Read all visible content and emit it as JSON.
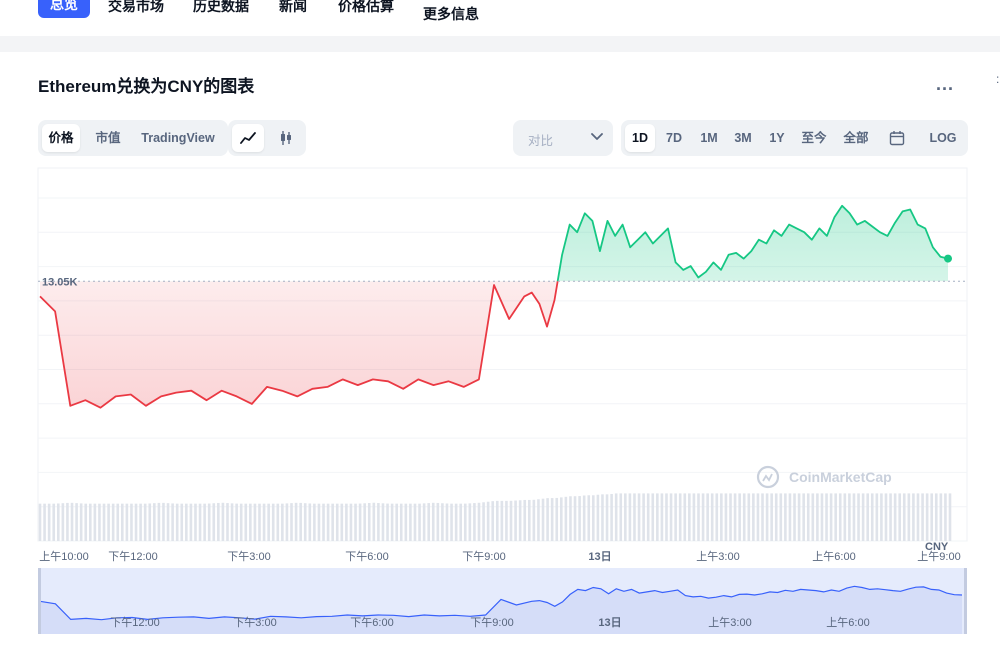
{
  "nav": {
    "active": "总览",
    "items": [
      "交易市场",
      "历史数据",
      "新闻",
      "价格估算",
      "更多信息"
    ]
  },
  "title": "Ethereum兑换为CNY的图表",
  "more_label": "...",
  "view_tabs": [
    "价格",
    "市值",
    "TradingView"
  ],
  "view_selected": "价格",
  "chart_types": [
    "line-chart-icon",
    "candlestick-icon"
  ],
  "compare": {
    "placeholder": "对比"
  },
  "ranges": [
    "1D",
    "7D",
    "1M",
    "3M",
    "1Y",
    "至今",
    "全部"
  ],
  "range_selected": "1D",
  "log_label": "LOG",
  "colors": {
    "up": "#16c784",
    "down": "#ea3943",
    "accent": "#3861fb",
    "baseline": "#a6b0c3"
  },
  "chart_data": {
    "type": "line",
    "title": "",
    "baseline_label": "13.05K",
    "baseline_value": 13050,
    "currency_label": "CNY",
    "x_ticks": [
      "上午10:00",
      "下午12:00",
      "下午3:00",
      "下午6:00",
      "下午9:00",
      "13日",
      "上午3:00",
      "上午6:00",
      "上午9:00"
    ],
    "nav_ticks": [
      "下午12:00",
      "下午3:00",
      "下午6:00",
      "下午9:00",
      "13日",
      "上午3:00",
      "上午6:00"
    ],
    "watermark": "CoinMarketCap",
    "x_range": [
      0,
      240
    ],
    "y_range": [
      12550,
      13350
    ],
    "x": [
      0,
      4,
      8,
      12,
      16,
      20,
      24,
      28,
      32,
      36,
      40,
      44,
      48,
      52,
      56,
      60,
      64,
      68,
      72,
      76,
      80,
      84,
      88,
      92,
      96,
      100,
      104,
      108,
      112,
      116,
      120,
      124,
      128,
      130,
      132,
      134,
      136,
      138,
      140,
      142,
      144,
      146,
      148,
      150,
      152,
      154,
      156,
      158,
      160,
      162,
      164,
      166,
      168,
      170,
      172,
      174,
      176,
      178,
      180,
      182,
      184,
      186,
      188,
      190,
      192,
      194,
      196,
      198,
      200,
      202,
      204,
      206,
      208,
      210,
      212,
      214,
      216,
      218,
      220,
      222,
      224,
      226,
      228,
      230,
      232,
      234,
      236,
      238,
      240
    ],
    "y": [
      13010,
      12970,
      12720,
      12735,
      12715,
      12745,
      12750,
      12720,
      12745,
      12755,
      12760,
      12735,
      12760,
      12745,
      12725,
      12770,
      12760,
      12745,
      12765,
      12770,
      12790,
      12775,
      12790,
      12785,
      12765,
      12790,
      12775,
      12785,
      12770,
      12790,
      13040,
      12950,
      13010,
      13020,
      12990,
      12930,
      13000,
      13120,
      13200,
      13180,
      13230,
      13210,
      13130,
      13210,
      13170,
      13200,
      13140,
      13160,
      13180,
      13150,
      13170,
      13190,
      13100,
      13080,
      13090,
      13060,
      13075,
      13100,
      13080,
      13120,
      13125,
      13110,
      13130,
      13160,
      13150,
      13185,
      13170,
      13200,
      13190,
      13180,
      13160,
      13190,
      13170,
      13220,
      13250,
      13230,
      13200,
      13210,
      13195,
      13180,
      13170,
      13205,
      13235,
      13240,
      13200,
      13190,
      13140,
      13115,
      13110
    ],
    "volume": [
      40,
      40,
      41,
      40,
      40,
      40,
      40,
      40,
      41,
      40,
      40,
      40,
      41,
      40,
      40,
      40,
      40,
      41,
      40,
      40,
      40,
      40,
      41,
      40,
      40,
      40,
      41,
      40,
      40,
      41,
      43,
      43,
      44,
      44,
      45,
      46,
      46,
      47,
      48,
      48,
      49,
      49,
      50,
      50,
      51,
      51,
      51,
      51,
      51,
      51,
      51,
      51,
      51,
      51,
      51,
      51,
      51,
      51,
      51,
      51,
      51,
      51,
      51,
      51,
      51,
      51,
      51,
      51,
      51,
      51,
      51,
      51,
      51,
      51,
      51,
      51,
      51,
      51,
      51,
      51,
      51,
      51,
      51,
      51,
      51,
      51,
      51,
      51,
      51
    ]
  }
}
